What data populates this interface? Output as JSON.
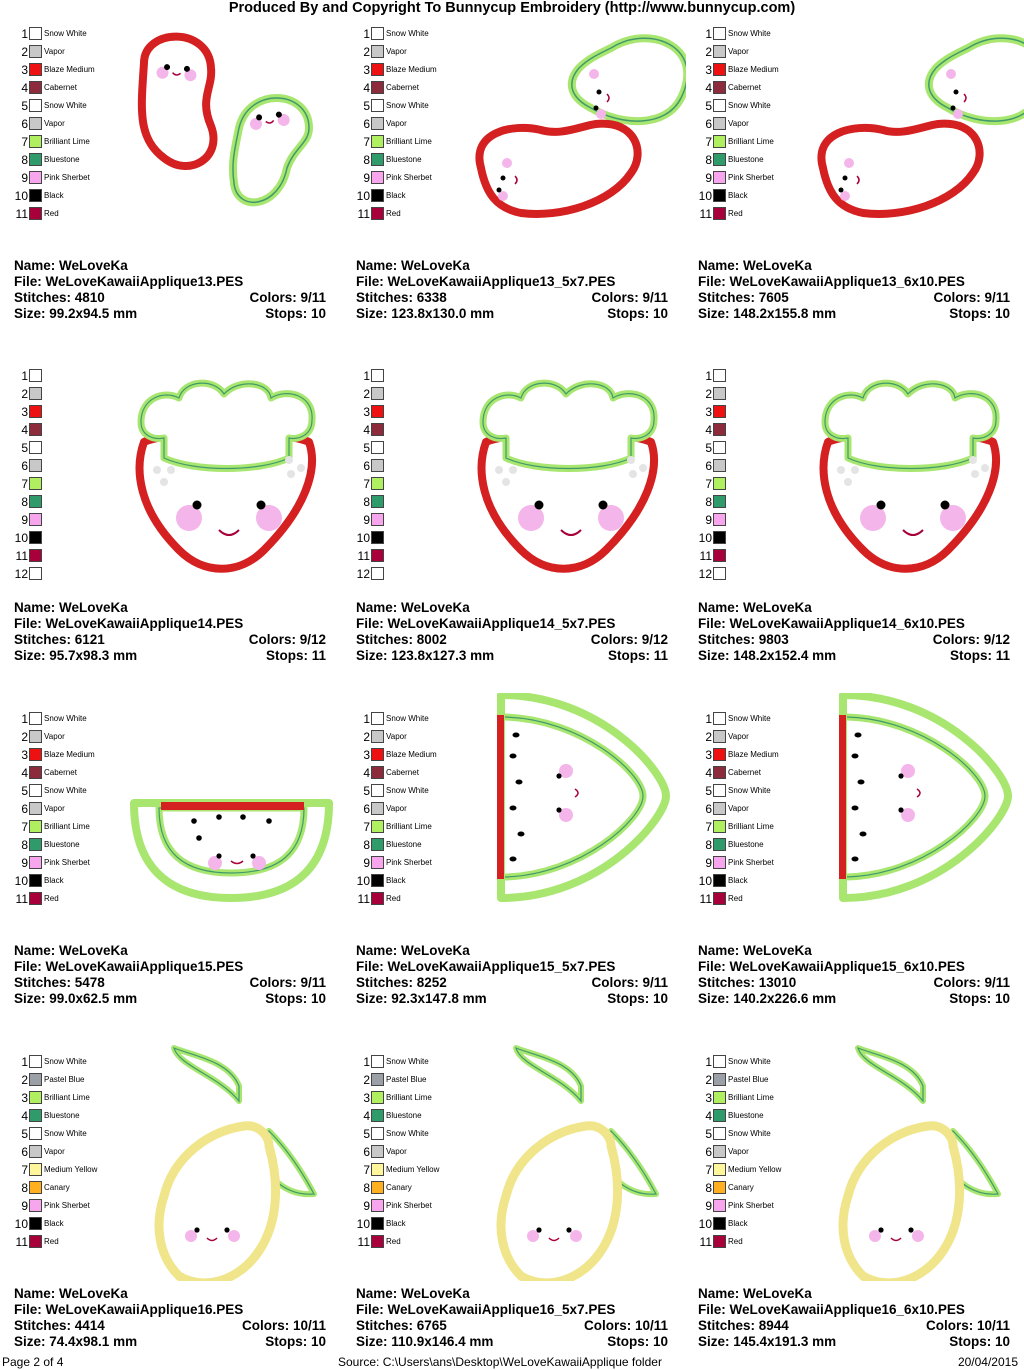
{
  "header": {
    "title": "Produced By and Copyright To Bunnycup Embroidery (http://www.bunnycup.com)"
  },
  "palettes": {
    "bean": [
      {
        "n": "1",
        "color": "#ffffff",
        "name": "Snow White"
      },
      {
        "n": "2",
        "color": "#c8c8c8",
        "name": "Vapor"
      },
      {
        "n": "3",
        "color": "#ee1111",
        "name": "Blaze Medium"
      },
      {
        "n": "4",
        "color": "#8c2b3c",
        "name": "Cabernet"
      },
      {
        "n": "5",
        "color": "#ffffff",
        "name": "Snow White"
      },
      {
        "n": "6",
        "color": "#c8c8c8",
        "name": "Vapor"
      },
      {
        "n": "7",
        "color": "#b0f060",
        "name": "Brilliant Lime"
      },
      {
        "n": "8",
        "color": "#2f9a6a",
        "name": "Bluestone"
      },
      {
        "n": "9",
        "color": "#f7a6ee",
        "name": "Pink Sherbet"
      },
      {
        "n": "10",
        "color": "#000000",
        "name": "Black"
      },
      {
        "n": "11",
        "color": "#a8003a",
        "name": "Red"
      }
    ],
    "strawberry": [
      {
        "n": "1",
        "color": "#ffffff",
        "name": ""
      },
      {
        "n": "2",
        "color": "#c8c8c8",
        "name": ""
      },
      {
        "n": "3",
        "color": "#ee1111",
        "name": ""
      },
      {
        "n": "4",
        "color": "#8c2b3c",
        "name": ""
      },
      {
        "n": "5",
        "color": "#ffffff",
        "name": ""
      },
      {
        "n": "6",
        "color": "#c8c8c8",
        "name": ""
      },
      {
        "n": "7",
        "color": "#b0f060",
        "name": ""
      },
      {
        "n": "8",
        "color": "#2f9a6a",
        "name": ""
      },
      {
        "n": "9",
        "color": "#f7a6ee",
        "name": ""
      },
      {
        "n": "10",
        "color": "#000000",
        "name": ""
      },
      {
        "n": "11",
        "color": "#a8003a",
        "name": ""
      },
      {
        "n": "12",
        "color": "#ffffff",
        "name": ""
      }
    ],
    "lemon": [
      {
        "n": "1",
        "color": "#ffffff",
        "name": "Snow White"
      },
      {
        "n": "2",
        "color": "#9aa0a6",
        "name": "Pastel Blue"
      },
      {
        "n": "3",
        "color": "#b0f060",
        "name": "Brilliant Lime"
      },
      {
        "n": "4",
        "color": "#2f9a6a",
        "name": "Bluestone"
      },
      {
        "n": "5",
        "color": "#ffffff",
        "name": "Snow White"
      },
      {
        "n": "6",
        "color": "#c8c8c8",
        "name": "Vapor"
      },
      {
        "n": "7",
        "color": "#fff59a",
        "name": "Medium Yellow"
      },
      {
        "n": "8",
        "color": "#ffb020",
        "name": "Canary"
      },
      {
        "n": "9",
        "color": "#f7a6ee",
        "name": "Pink Sherbet"
      },
      {
        "n": "10",
        "color": "#000000",
        "name": "Black"
      },
      {
        "n": "11",
        "color": "#a8003a",
        "name": "Red"
      }
    ]
  },
  "designs": [
    {
      "name_label": "Name: WeLoveKa",
      "file_label": "File: WeLoveKawaiiApplique13.PES",
      "stitches_label": "Stitches: 4810",
      "colors_label": "Colors: 9/11",
      "size_label": "Size: 99.2x94.5 mm",
      "stops_label": "Stops: 10"
    },
    {
      "name_label": "Name: WeLoveKa",
      "file_label": "File: WeLoveKawaiiApplique13_5x7.PES",
      "stitches_label": "Stitches: 6338",
      "colors_label": "Colors: 9/11",
      "size_label": "Size: 123.8x130.0 mm",
      "stops_label": "Stops: 10"
    },
    {
      "name_label": "Name: WeLoveKa",
      "file_label": "File: WeLoveKawaiiApplique13_6x10.PES",
      "stitches_label": "Stitches: 7605",
      "colors_label": "Colors: 9/11",
      "size_label": "Size: 148.2x155.8 mm",
      "stops_label": "Stops: 10"
    },
    {
      "name_label": "Name: WeLoveKa",
      "file_label": "File: WeLoveKawaiiApplique14.PES",
      "stitches_label": "Stitches: 6121",
      "colors_label": "Colors: 9/12",
      "size_label": "Size: 95.7x98.3 mm",
      "stops_label": "Stops: 11"
    },
    {
      "name_label": "Name: WeLoveKa",
      "file_label": "File: WeLoveKawaiiApplique14_5x7.PES",
      "stitches_label": "Stitches: 8002",
      "colors_label": "Colors: 9/12",
      "size_label": "Size: 123.8x127.3 mm",
      "stops_label": "Stops: 11"
    },
    {
      "name_label": "Name: WeLoveKa",
      "file_label": "File: WeLoveKawaiiApplique14_6x10.PES",
      "stitches_label": "Stitches: 9803",
      "colors_label": "Colors: 9/12",
      "size_label": "Size: 148.2x152.4 mm",
      "stops_label": "Stops: 11"
    },
    {
      "name_label": "Name: WeLoveKa",
      "file_label": "File: WeLoveKawaiiApplique15.PES",
      "stitches_label": "Stitches: 5478",
      "colors_label": "Colors: 9/11",
      "size_label": "Size: 99.0x62.5 mm",
      "stops_label": "Stops: 10"
    },
    {
      "name_label": "Name: WeLoveKa",
      "file_label": "File: WeLoveKawaiiApplique15_5x7.PES",
      "stitches_label": "Stitches: 8252",
      "colors_label": "Colors: 9/11",
      "size_label": "Size: 92.3x147.8 mm",
      "stops_label": "Stops: 10"
    },
    {
      "name_label": "Name: WeLoveKa",
      "file_label": "File: WeLoveKawaiiApplique15_6x10.PES",
      "stitches_label": "Stitches: 13010",
      "colors_label": "Colors: 9/11",
      "size_label": "Size: 140.2x226.6 mm",
      "stops_label": "Stops: 10"
    },
    {
      "name_label": "Name: WeLoveKa",
      "file_label": "File: WeLoveKawaiiApplique16.PES",
      "stitches_label": "Stitches: 4414",
      "colors_label": "Colors: 10/11",
      "size_label": "Size: 74.4x98.1 mm",
      "stops_label": "Stops: 10"
    },
    {
      "name_label": "Name: WeLoveKa",
      "file_label": "File: WeLoveKawaiiApplique16_5x7.PES",
      "stitches_label": "Stitches: 6765",
      "colors_label": "Colors: 10/11",
      "size_label": "Size: 110.9x146.4 mm",
      "stops_label": "Stops: 10"
    },
    {
      "name_label": "Name: WeLoveKa",
      "file_label": "File: WeLoveKawaiiApplique16_6x10.PES",
      "stitches_label": "Stitches: 8944",
      "colors_label": "Colors: 10/11",
      "size_label": "Size: 145.4x191.3 mm",
      "stops_label": "Stops: 10"
    }
  ],
  "footer": {
    "page": "Page 2 of 4",
    "source": "Source: C:\\Users\\ans\\Desktop\\WeLoveKawaiiApplique folder",
    "date": "20/04/2015"
  }
}
